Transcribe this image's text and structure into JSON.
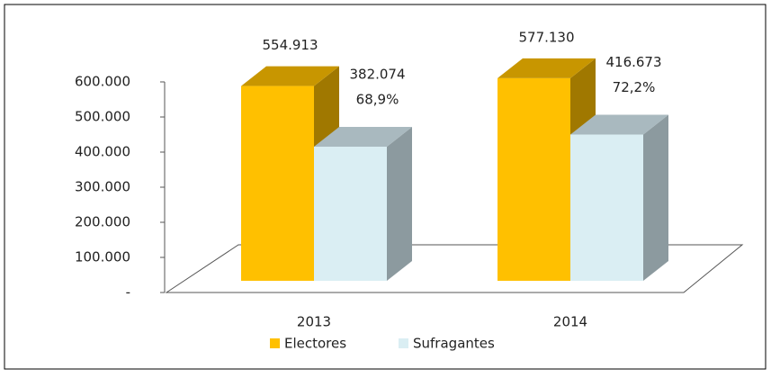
{
  "chart_data": {
    "type": "bar3d",
    "categories": [
      "2013",
      "2014"
    ],
    "series": [
      {
        "name": "Electores",
        "color": "#ffc000",
        "values": [
          554913,
          577130
        ],
        "value_labels": [
          "554.913",
          "577.130"
        ]
      },
      {
        "name": "Sufragantes",
        "color": "#daeef3",
        "values": [
          382074,
          416673
        ],
        "value_labels": [
          "382.074",
          "416.673"
        ]
      }
    ],
    "annotations": [
      "68,9%",
      "72,2%"
    ],
    "ylim": [
      0,
      600000
    ],
    "yticks": [
      {
        "value": 0,
        "label": "-"
      },
      {
        "value": 100000,
        "label": "100.000"
      },
      {
        "value": 200000,
        "label": "200.000"
      },
      {
        "value": 300000,
        "label": "300.000"
      },
      {
        "value": 400000,
        "label": "400.000"
      },
      {
        "value": 500000,
        "label": "500.000"
      },
      {
        "value": 600000,
        "label": "600.000"
      }
    ],
    "legend": "bottom"
  }
}
